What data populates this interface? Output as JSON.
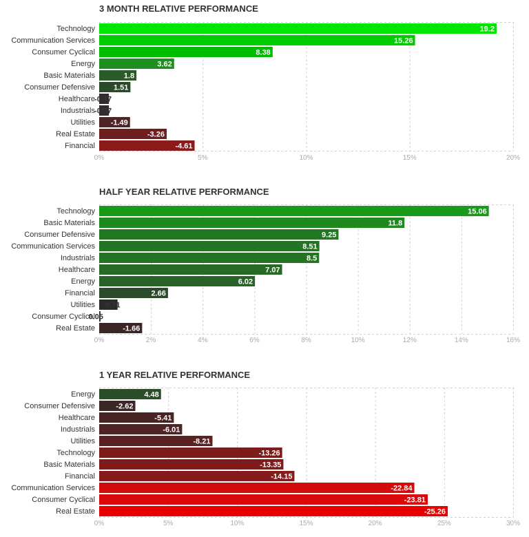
{
  "chart_data": [
    {
      "type": "bar",
      "orientation": "horizontal",
      "title": "3 MONTH RELATIVE PERFORMANCE",
      "categories": [
        "Technology",
        "Communication Services",
        "Consumer Cyclical",
        "Energy",
        "Basic Materials",
        "Consumer Defensive",
        "Healthcare",
        "Industrials",
        "Utilities",
        "Real Estate",
        "Financial"
      ],
      "values": [
        19.2,
        15.26,
        8.38,
        3.62,
        1.8,
        1.51,
        -0.47,
        -0.47,
        -1.49,
        -3.26,
        -4.61
      ],
      "value_labels": [
        "19.2",
        "15.26",
        "8.38",
        "3.62",
        "1.8",
        "1.51",
        "-0.47",
        "-0.47",
        "-1.49",
        "-3.26",
        "-4.61"
      ],
      "colors": [
        "#00e600",
        "#00cc00",
        "#00bb00",
        "#1e8f1e",
        "#2a5c2a",
        "#2a4a2a",
        "#332c2c",
        "#332c2c",
        "#4d2525",
        "#6e1e1e",
        "#8b1a1a"
      ],
      "xlim": [
        0,
        20
      ],
      "xticks": [
        0,
        5,
        10,
        15,
        20
      ],
      "xtick_labels": [
        "0%",
        "5%",
        "10%",
        "15%",
        "20%"
      ],
      "grid": true
    },
    {
      "type": "bar",
      "orientation": "horizontal",
      "title": "HALF YEAR RELATIVE PERFORMANCE",
      "categories": [
        "Technology",
        "Basic Materials",
        "Consumer Defensive",
        "Communication Services",
        "Industrials",
        "Healthcare",
        "Energy",
        "Financial",
        "Utilities",
        "Consumer Cyclical",
        "Real Estate"
      ],
      "values": [
        15.06,
        11.8,
        9.25,
        8.51,
        8.5,
        7.07,
        6.02,
        2.66,
        0.71,
        0.05,
        -1.66
      ],
      "value_labels": [
        "15.06",
        "11.8",
        "9.25",
        "8.51",
        "8.5",
        "7.07",
        "6.02",
        "2.66",
        "0.71",
        "0.05",
        "-1.66"
      ],
      "colors": [
        "#1a9a1a",
        "#1e8a1e",
        "#217821",
        "#237523",
        "#237523",
        "#266a26",
        "#286428",
        "#2c4a2c",
        "#2b2b2b",
        "#2b2b2b",
        "#3b2626"
      ],
      "xlim": [
        0,
        16
      ],
      "xticks": [
        0,
        2,
        4,
        6,
        8,
        10,
        12,
        14,
        16
      ],
      "xtick_labels": [
        "0%",
        "2%",
        "4%",
        "6%",
        "8%",
        "10%",
        "12%",
        "14%",
        "16%"
      ],
      "grid": true
    },
    {
      "type": "bar",
      "orientation": "horizontal",
      "title": "1 YEAR RELATIVE PERFORMANCE",
      "categories": [
        "Energy",
        "Consumer Defensive",
        "Healthcare",
        "Industrials",
        "Utilities",
        "Technology",
        "Basic Materials",
        "Financial",
        "Communication Services",
        "Consumer Cyclical",
        "Real Estate"
      ],
      "values": [
        4.48,
        -2.62,
        -5.41,
        -6.01,
        -8.21,
        -13.26,
        -13.35,
        -14.15,
        -22.84,
        -23.81,
        -25.26
      ],
      "value_labels": [
        "4.48",
        "-2.62",
        "-5.41",
        "-6.01",
        "-8.21",
        "-13.26",
        "-13.35",
        "-14.15",
        "-22.84",
        "-23.81",
        "-25.26"
      ],
      "colors": [
        "#2a4d2a",
        "#3d2626",
        "#4a2424",
        "#4e2424",
        "#5a2222",
        "#7d1c1c",
        "#7e1c1c",
        "#851b1b",
        "#d40b0b",
        "#db0909",
        "#e80000"
      ],
      "xlim": [
        0,
        30
      ],
      "xticks": [
        0,
        5,
        10,
        15,
        20,
        25,
        30
      ],
      "xtick_labels": [
        "0%",
        "5%",
        "10%",
        "15%",
        "20%",
        "25%",
        "30%"
      ],
      "grid": true
    }
  ]
}
